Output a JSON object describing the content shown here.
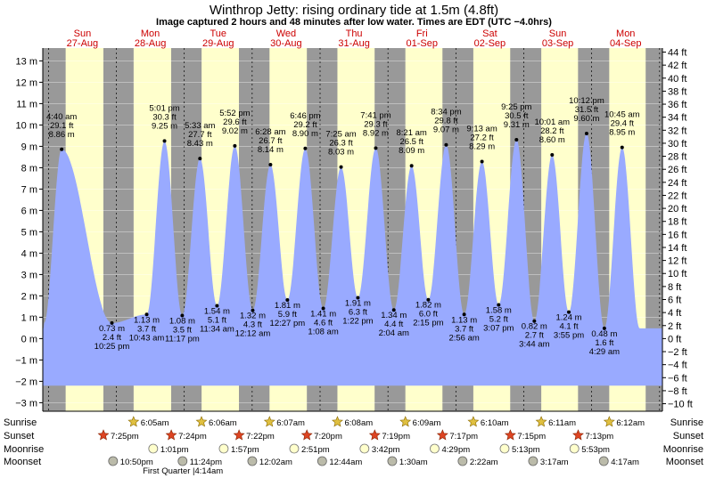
{
  "header": {
    "title": "Winthrop Jetty: rising  ordinary tide at 1.5m (4.8ft)",
    "subtitle": "Image captured 2 hours and 48 minutes after low water. Times are EDT (UTC −4.0hrs)"
  },
  "colors": {
    "night": "#999999",
    "day": "#ffffcc",
    "tide": "#99aaff",
    "day_label": "#cc0000"
  },
  "chart_data": {
    "type": "area",
    "title": "Winthrop Jetty: rising  ordinary tide at 1.5m (4.8ft)",
    "y_left": {
      "unit": "m",
      "range": [
        -3.4,
        13.6
      ],
      "ticks": [
        -3,
        -2,
        -1,
        0,
        1,
        2,
        3,
        4,
        5,
        6,
        7,
        8,
        9,
        10,
        11,
        12,
        13
      ]
    },
    "y_right": {
      "unit": "ft",
      "range": [
        -11.155,
        44.619
      ],
      "ticks": [
        -10,
        -8,
        -6,
        -4,
        -2,
        0,
        2,
        4,
        6,
        8,
        10,
        12,
        14,
        16,
        18,
        20,
        22,
        24,
        26,
        28,
        30,
        32,
        34,
        36,
        38,
        40,
        42,
        44
      ]
    },
    "x_range_hours": [
      -2,
      217
    ],
    "days": [
      {
        "day": "Sun",
        "date": "27-Aug"
      },
      {
        "day": "Mon",
        "date": "28-Aug"
      },
      {
        "day": "Tue",
        "date": "29-Aug"
      },
      {
        "day": "Wed",
        "date": "30-Aug"
      },
      {
        "day": "Thu",
        "date": "31-Aug"
      },
      {
        "day": "Fri",
        "date": "01-Sep"
      },
      {
        "day": "Sat",
        "date": "02-Sep"
      },
      {
        "day": "Sun",
        "date": "03-Sep"
      },
      {
        "day": "Mon",
        "date": "04-Sep"
      }
    ],
    "night_bands": [
      [
        -2,
        6.08
      ],
      [
        19.42,
        30.1
      ],
      [
        43.37,
        54.12
      ],
      [
        67.33,
        78.13
      ],
      [
        91.33,
        102.13
      ],
      [
        115.28,
        126.15
      ],
      [
        139.25,
        150.17
      ],
      [
        163.2,
        174.18
      ],
      [
        187.17,
        198.2
      ],
      [
        211.08,
        217
      ]
    ],
    "hilo": [
      {
        "t": 4.67,
        "m": 8.86,
        "time": "4:40 am",
        "ft": "29.1 ft",
        "mt": "8.86 m"
      },
      {
        "t": 22.42,
        "m": 0.73,
        "time": "10:25 pm",
        "ft": "2.4 ft",
        "mt": "0.73 m"
      },
      {
        "t": 34.72,
        "m": 1.13,
        "time": "10:43 am",
        "ft": "3.7 ft",
        "mt": "1.13 m"
      },
      {
        "t": 41.02,
        "m": 9.25,
        "time": "5:01 pm",
        "ft": "30.3 ft",
        "mt": "9.25 m"
      },
      {
        "t": 47.28,
        "m": 1.08,
        "time": "11:17 pm",
        "ft": "3.5 ft",
        "mt": "1.08 m"
      },
      {
        "t": 53.55,
        "m": 8.43,
        "time": "5:33 am",
        "ft": "27.7 ft",
        "mt": "8.43 m"
      },
      {
        "t": 59.57,
        "m": 1.54,
        "time": "11:34 am",
        "ft": "5.1 ft",
        "mt": "1.54 m"
      },
      {
        "t": 65.87,
        "m": 9.02,
        "time": "5:52 pm",
        "ft": "29.6 ft",
        "mt": "9.02 m"
      },
      {
        "t": 72.2,
        "m": 1.32,
        "time": "12:12 am",
        "ft": "4.3 ft",
        "mt": "1.32 m"
      },
      {
        "t": 78.47,
        "m": 8.14,
        "time": "6:28 am",
        "ft": "26.7 ft",
        "mt": "8.14 m"
      },
      {
        "t": 84.45,
        "m": 1.81,
        "time": "12:27 pm",
        "ft": "5.9 ft",
        "mt": "1.81 m"
      },
      {
        "t": 90.77,
        "m": 8.9,
        "time": "6:46 pm",
        "ft": "29.2 ft",
        "mt": "8.90 m"
      },
      {
        "t": 97.13,
        "m": 1.41,
        "time": "1:08 am",
        "ft": "4.6 ft",
        "mt": "1.41 m"
      },
      {
        "t": 103.42,
        "m": 8.03,
        "time": "7:25 am",
        "ft": "26.3 ft",
        "mt": "8.03 m"
      },
      {
        "t": 109.37,
        "m": 1.91,
        "time": "1:22 pm",
        "ft": "6.3 ft",
        "mt": "1.91 m"
      },
      {
        "t": 115.68,
        "m": 8.92,
        "time": "7:41 pm",
        "ft": "29.3 ft",
        "mt": "8.92 m"
      },
      {
        "t": 122.07,
        "m": 1.34,
        "time": "2:04 am",
        "ft": "4.4 ft",
        "mt": "1.34 m"
      },
      {
        "t": 128.35,
        "m": 8.09,
        "time": "8:21 am",
        "ft": "26.5 ft",
        "mt": "8.09 m"
      },
      {
        "t": 134.25,
        "m": 1.82,
        "time": "2:15 pm",
        "ft": "6.0 ft",
        "mt": "1.82 m"
      },
      {
        "t": 140.57,
        "m": 9.07,
        "time": "8:34 pm",
        "ft": "29.8 ft",
        "mt": "9.07 m"
      },
      {
        "t": 146.93,
        "m": 1.13,
        "time": "2:56 am",
        "ft": "3.7 ft",
        "mt": "1.13 m"
      },
      {
        "t": 153.22,
        "m": 8.29,
        "time": "9:13 am",
        "ft": "27.2 ft",
        "mt": "8.29 m"
      },
      {
        "t": 159.12,
        "m": 1.58,
        "time": "3:07 pm",
        "ft": "5.2 ft",
        "mt": "1.58 m"
      },
      {
        "t": 165.42,
        "m": 9.31,
        "time": "9:25 pm",
        "ft": "30.5 ft",
        "mt": "9.31 m"
      },
      {
        "t": 171.73,
        "m": 0.82,
        "time": "3:44 am",
        "ft": "2.7 ft",
        "mt": "0.82 m"
      },
      {
        "t": 178.02,
        "m": 8.6,
        "time": "10:01 am",
        "ft": "28.2 ft",
        "mt": "8.60 m"
      },
      {
        "t": 183.92,
        "m": 1.24,
        "time": "3:55 pm",
        "ft": "4.1 ft",
        "mt": "1.24 m"
      },
      {
        "t": 190.2,
        "m": 9.6,
        "time": "10:12 pm",
        "ft": "31.5 ft",
        "mt": "9.60 m"
      },
      {
        "t": 196.48,
        "m": 0.48,
        "time": "4:29 am",
        "ft": "1.6 ft",
        "mt": "0.48 m"
      },
      {
        "t": 202.75,
        "m": 8.95,
        "time": "10:45 am",
        "ft": "29.4 ft",
        "mt": "8.95 m"
      }
    ],
    "bottom_rows": [
      {
        "label": "Sunrise",
        "kind": "sunrise",
        "events": [
          {
            "t": 30.08,
            "time": "6:05am"
          },
          {
            "t": 54.1,
            "time": "6:06am"
          },
          {
            "t": 78.12,
            "time": "6:07am"
          },
          {
            "t": 102.13,
            "time": "6:08am"
          },
          {
            "t": 126.15,
            "time": "6:09am"
          },
          {
            "t": 150.17,
            "time": "6:10am"
          },
          {
            "t": 174.18,
            "time": "6:11am"
          },
          {
            "t": 198.2,
            "time": "6:12am"
          }
        ]
      },
      {
        "label": "Sunset",
        "kind": "sunset",
        "events": [
          {
            "t": 19.42,
            "time": "7:25pm"
          },
          {
            "t": 43.4,
            "time": "7:24pm"
          },
          {
            "t": 67.37,
            "time": "7:22pm"
          },
          {
            "t": 91.33,
            "time": "7:20pm"
          },
          {
            "t": 115.32,
            "time": "7:19pm"
          },
          {
            "t": 139.28,
            "time": "7:17pm"
          },
          {
            "t": 163.25,
            "time": "7:15pm"
          },
          {
            "t": 187.22,
            "time": "7:13pm"
          }
        ]
      },
      {
        "label": "Moonrise",
        "kind": "moonrise",
        "events": [
          {
            "t": 37.02,
            "time": "1:01pm"
          },
          {
            "t": 61.95,
            "time": "1:57pm"
          },
          {
            "t": 86.85,
            "time": "2:51pm"
          },
          {
            "t": 111.7,
            "time": "3:42pm"
          },
          {
            "t": 136.48,
            "time": "4:29pm"
          },
          {
            "t": 161.22,
            "time": "5:13pm"
          },
          {
            "t": 185.88,
            "time": "5:53pm"
          }
        ]
      },
      {
        "label": "Moonset",
        "kind": "moonset",
        "events": [
          {
            "t": 22.83,
            "time": "10:50pm"
          },
          {
            "t": 47.4,
            "time": "11:24pm"
          },
          {
            "t": 72.03,
            "time": "12:02am"
          },
          {
            "t": 96.73,
            "time": "12:44am"
          },
          {
            "t": 121.5,
            "time": "1:30am"
          },
          {
            "t": 146.37,
            "time": "2:22am"
          },
          {
            "t": 171.28,
            "time": "3:17am"
          },
          {
            "t": 196.28,
            "time": "4:17am"
          }
        ]
      }
    ],
    "moon_phase": {
      "t": 52.23,
      "label": "First Quarter |4:14am"
    }
  }
}
